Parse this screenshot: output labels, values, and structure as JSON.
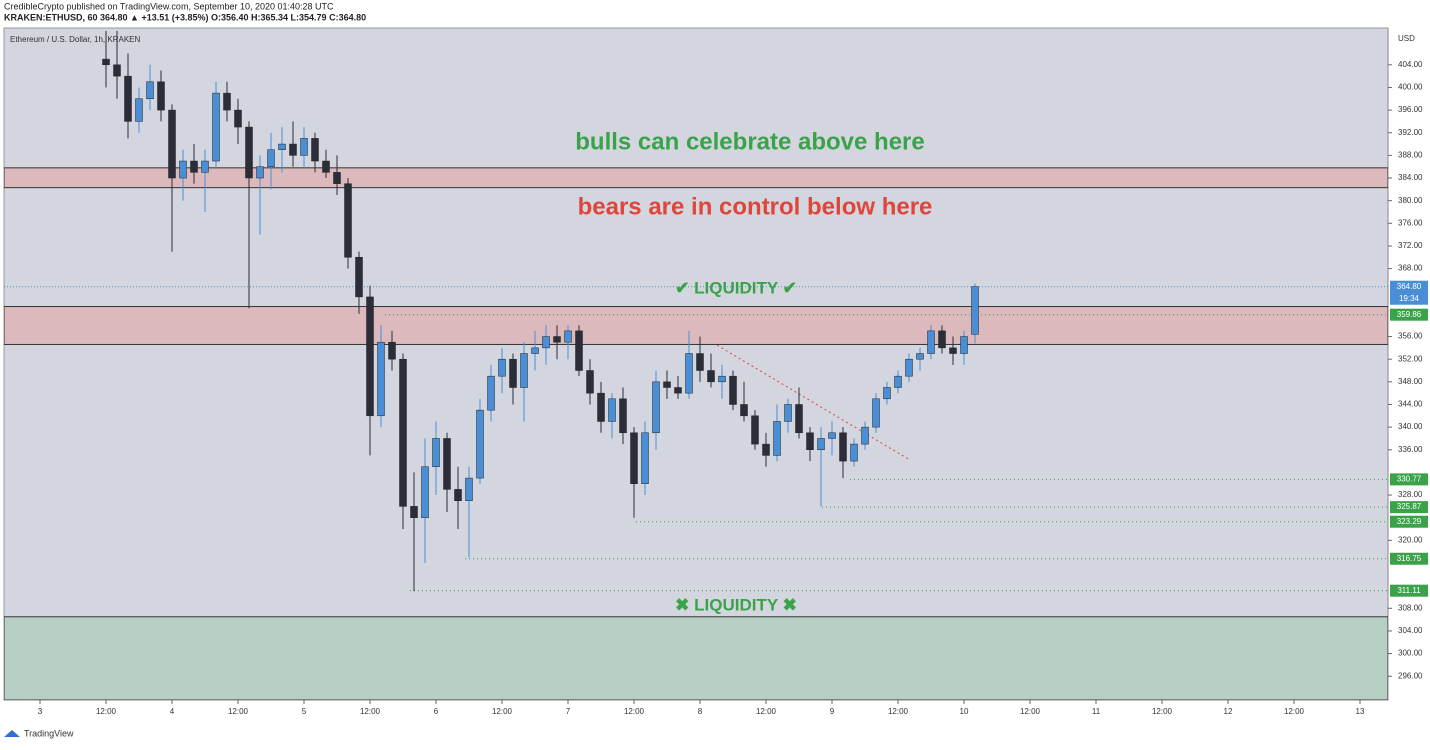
{
  "header": {
    "publisher": "CredibleCrypto published on TradingView.com, September 10, 2020 01:40:28 UTC",
    "symbol_line": "KRAKEN:ETHUSD, 60  364.80 ▲ +13.51 (+3.85%) O:356.40 H:365.34 L:354.79 C:364.80"
  },
  "footer": {
    "brand": "TradingView"
  },
  "chart_data": {
    "type": "candlestick",
    "title": "Ethereum / U.S. Dollar, 1h, KRAKEN",
    "y_unit": "USD",
    "up_color": "#4a8fd6",
    "down_color": "#2b2e38",
    "open": [
      405,
      404,
      402,
      394,
      398,
      401,
      396,
      384,
      387,
      385,
      387,
      399,
      396,
      393,
      384,
      386,
      389,
      390,
      388,
      391,
      387,
      385,
      383,
      370,
      363,
      342,
      355,
      352,
      326,
      324,
      333,
      338,
      329,
      327,
      331,
      343,
      349,
      352,
      347,
      353,
      354,
      356,
      355,
      357,
      350,
      346,
      341,
      345,
      339,
      330,
      339,
      348,
      347,
      346,
      353,
      350,
      348,
      349,
      344,
      342,
      337,
      335,
      341,
      344,
      339,
      336,
      338,
      339,
      334,
      337,
      340,
      345,
      347,
      349,
      352,
      353,
      357,
      354,
      353,
      356.4
    ],
    "high": [
      410,
      410,
      406,
      400,
      404,
      403,
      397,
      389,
      390,
      389,
      401,
      401,
      398,
      394,
      388,
      392,
      393,
      394,
      393,
      392,
      389,
      388,
      384,
      371,
      365,
      358,
      357,
      353,
      332,
      338,
      341,
      339,
      333,
      333,
      345,
      351,
      354,
      353,
      355,
      357,
      358,
      358,
      358,
      358,
      352,
      348,
      346,
      347,
      340,
      341,
      350,
      350,
      349,
      357,
      356,
      353,
      351,
      350,
      348,
      343,
      339,
      344,
      345,
      347,
      340,
      340,
      341,
      340,
      338,
      341,
      346,
      348,
      350,
      353,
      354,
      358,
      358,
      356,
      357,
      365.34
    ],
    "low": [
      400,
      398,
      391,
      392,
      396,
      394,
      371,
      380,
      383,
      378,
      386,
      394,
      390,
      361,
      374,
      382,
      385,
      386,
      386,
      385,
      384,
      381,
      368,
      360,
      335,
      340,
      350,
      322,
      311,
      316,
      328,
      325,
      322,
      317,
      330,
      341,
      346,
      344,
      341,
      350,
      351,
      352,
      352,
      349,
      344,
      339,
      338,
      337,
      324,
      328,
      336,
      345,
      345,
      345,
      348,
      347,
      345,
      343,
      341,
      336,
      333,
      334,
      339,
      338,
      334,
      326,
      335,
      331,
      333,
      336,
      339,
      344,
      346,
      348,
      350,
      352,
      353,
      351,
      351,
      354.79
    ],
    "close": [
      404,
      402,
      394,
      398,
      401,
      396,
      384,
      387,
      385,
      387,
      399,
      396,
      393,
      384,
      386,
      389,
      390,
      388,
      391,
      387,
      385,
      383,
      370,
      363,
      342,
      355,
      352,
      326,
      324,
      333,
      338,
      329,
      327,
      331,
      343,
      349,
      352,
      347,
      353,
      354,
      356,
      355,
      357,
      350,
      346,
      341,
      345,
      339,
      330,
      339,
      348,
      347,
      346,
      353,
      350,
      348,
      349,
      344,
      342,
      337,
      335,
      341,
      344,
      339,
      336,
      338,
      339,
      334,
      337,
      340,
      345,
      347,
      349,
      352,
      353,
      357,
      354,
      353,
      356,
      364.8
    ],
    "ylim": [
      291.8,
      410.5
    ],
    "yticks": [
      {
        "value": 404,
        "label": "404.00"
      },
      {
        "value": 400,
        "label": "400.00"
      },
      {
        "value": 396,
        "label": "396.00"
      },
      {
        "value": 392,
        "label": "392.00"
      },
      {
        "value": 388,
        "label": "388.00"
      },
      {
        "value": 384,
        "label": "384.00"
      },
      {
        "value": 380,
        "label": "380.00"
      },
      {
        "value": 376,
        "label": "376.00"
      },
      {
        "value": 372,
        "label": "372.00"
      },
      {
        "value": 368,
        "label": "368.00"
      },
      {
        "value": 356,
        "label": "356.00"
      },
      {
        "value": 352,
        "label": "352.00"
      },
      {
        "value": 348,
        "label": "348.00"
      },
      {
        "value": 344,
        "label": "344.00"
      },
      {
        "value": 340,
        "label": "340.00"
      },
      {
        "value": 336,
        "label": "336.00"
      },
      {
        "value": 328,
        "label": "328.00"
      },
      {
        "value": 320,
        "label": "320.00"
      },
      {
        "value": 308,
        "label": "308.00"
      },
      {
        "value": 304,
        "label": "304.00"
      },
      {
        "value": 300,
        "label": "300.00"
      },
      {
        "value": 296,
        "label": "296.00"
      }
    ],
    "xticks": [
      {
        "value": 0,
        "label": "3"
      },
      {
        "value": 12,
        "label": "12:00"
      },
      {
        "value": 24,
        "label": "4"
      },
      {
        "value": 36,
        "label": "12:00"
      },
      {
        "value": 48,
        "label": "5"
      },
      {
        "value": 60,
        "label": "12:00"
      },
      {
        "value": 72,
        "label": "6"
      },
      {
        "value": 84,
        "label": "12:00"
      },
      {
        "value": 96,
        "label": "7"
      },
      {
        "value": 108,
        "label": "12:00"
      },
      {
        "value": 120,
        "label": "8"
      },
      {
        "value": 132,
        "label": "12:00"
      },
      {
        "value": 144,
        "label": "9"
      },
      {
        "value": 156,
        "label": "12:00"
      },
      {
        "value": 168,
        "label": "10"
      },
      {
        "value": 180,
        "label": "12:00"
      },
      {
        "value": 192,
        "label": "11"
      },
      {
        "value": 204,
        "label": "12:00"
      },
      {
        "value": 216,
        "label": "12"
      },
      {
        "value": 228,
        "label": "12:00"
      },
      {
        "value": 240,
        "label": "13"
      }
    ],
    "resistance_zone": [
      382.3,
      385.8
    ],
    "liquidity_zone": [
      354.6,
      361.3
    ],
    "support_top": 306.5,
    "last_price": {
      "value": 364.8,
      "label": "364.80"
    },
    "countdown": "19:34",
    "levels": [
      {
        "value": 359.86,
        "label": "359.86"
      },
      {
        "value": 330.77,
        "label": "330.77"
      },
      {
        "value": 325.87,
        "label": "325.87"
      },
      {
        "value": 323.29,
        "label": "323.29"
      },
      {
        "value": 316.75,
        "label": "316.75"
      },
      {
        "value": 311.11,
        "label": "311.11"
      }
    ],
    "annotations": [
      "bulls can celebrate above here",
      "bears are in control below here",
      "✔ LIQUIDITY ✔",
      "✖ LIQUIDITY ✖"
    ]
  }
}
